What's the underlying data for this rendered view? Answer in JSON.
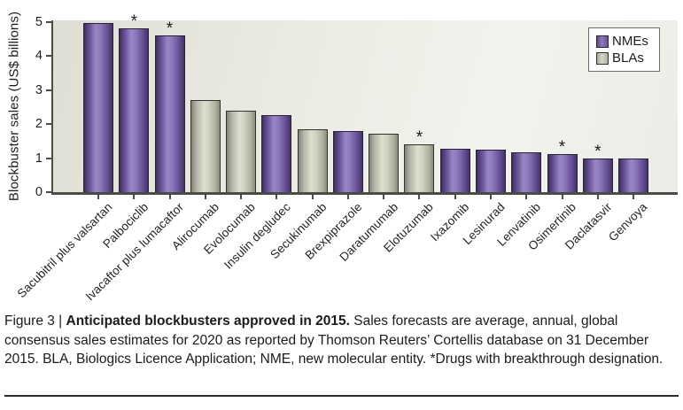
{
  "figure": {
    "caption": {
      "prefix": "Figure 3 | ",
      "bold": "Anticipated blockbusters approved in 2015.",
      "rest": " Sales forecasts are average, annual, global consensus sales estimates for 2020 as reported by Thomson Reuters’ Cortellis database on 31 December 2015. BLA, Biologics Licence Application; NME, new molecular entity. *Drugs with breakthrough designation."
    }
  },
  "chart_data": {
    "type": "bar",
    "title": "",
    "xlabel": "",
    "ylabel": "Blockbuster sales (US$ billions)",
    "ylim": [
      0,
      5
    ],
    "yticks": [
      0,
      1,
      2,
      3,
      4,
      5
    ],
    "grid": false,
    "legend_position": "top-right",
    "legend": [
      {
        "label": "NMEs",
        "class": "NME",
        "color": "#7b61a8"
      },
      {
        "label": "BLAs",
        "class": "BLA",
        "color": "#cfcfc1"
      }
    ],
    "categories": [
      "Sacubitril plus valsartan",
      "Palbociclib",
      "Ivacaftor plus lumacaftor",
      "Alirocumab",
      "Evolocumab",
      "Insulin degludec",
      "Secukinumab",
      "Brexpiprazole",
      "Daratumumab",
      "Elotuzumab",
      "Ixazomib",
      "Lesinurad",
      "Lenvatinib",
      "Osimertinib",
      "Daclatasvir",
      "Genvoya"
    ],
    "values": [
      4.95,
      4.8,
      4.6,
      2.7,
      2.4,
      2.25,
      1.85,
      1.8,
      1.72,
      1.4,
      1.28,
      1.26,
      1.16,
      1.13,
      1.0,
      0.98
    ],
    "bar_classes": [
      "NME",
      "NME",
      "NME",
      "BLA",
      "BLA",
      "NME",
      "BLA",
      "NME",
      "BLA",
      "BLA",
      "NME",
      "NME",
      "NME",
      "NME",
      "NME",
      "NME"
    ],
    "breakthrough_flags": [
      false,
      true,
      true,
      false,
      false,
      false,
      false,
      false,
      false,
      true,
      false,
      false,
      false,
      true,
      true,
      false
    ],
    "breakthrough_marker": "*",
    "annotation_note": "*Drugs with breakthrough designation"
  },
  "colors": {
    "nme_purple": "#7b61a8",
    "bla_gray": "#cfcfc1",
    "axis": "#4a4a46",
    "plot_bg_left": "#deded4",
    "plot_bg_right": "#f3f3ee"
  }
}
